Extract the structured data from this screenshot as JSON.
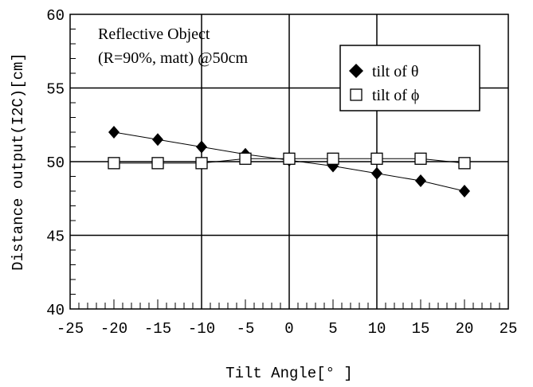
{
  "chart_data": {
    "type": "line",
    "xlabel": "Tilt Angle[° ]",
    "ylabel": "Distance output(I2C)[cm]",
    "xlim": [
      -25,
      25
    ],
    "ylim": [
      40,
      60
    ],
    "xticks": [
      "-25",
      "-20",
      "-15",
      "-10",
      "-5",
      "0",
      "5",
      "10",
      "15",
      "20",
      "25"
    ],
    "yticks": [
      "40",
      "45",
      "50",
      "55",
      "60"
    ],
    "grid": "major lines at x = -10, 0, 10 and y = 45, 50, 55",
    "annotation": [
      "Reflective Object",
      "(R=90%, matt) @50cm"
    ],
    "legend_position": "top-right",
    "x": [
      -20,
      -15,
      -10,
      -5,
      0,
      5,
      10,
      15,
      20
    ],
    "series": [
      {
        "name": "tilt of θ",
        "marker": "filled-diamond",
        "color": "#000000",
        "values": [
          52.0,
          51.5,
          51.0,
          50.5,
          50.1,
          49.7,
          49.2,
          48.7,
          48.0
        ]
      },
      {
        "name": "tilt of ϕ",
        "marker": "open-square",
        "color": "#000000",
        "values": [
          49.9,
          49.9,
          49.9,
          50.2,
          50.2,
          50.2,
          50.2,
          50.2,
          49.9
        ]
      }
    ]
  }
}
